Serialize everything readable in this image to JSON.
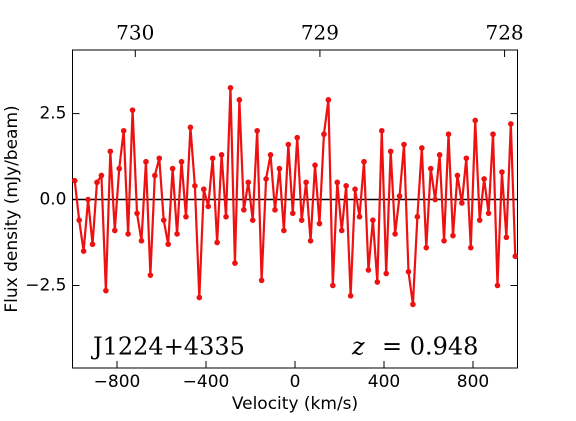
{
  "chart_data": {
    "type": "line",
    "xlabel": "Velocity (km/s)",
    "ylabel": "Flux density (mJy/beam)",
    "source_label": "J1224+4335",
    "redshift_symbol": "z",
    "redshift_text": "= 0.948",
    "xlim": [
      -1000,
      1000
    ],
    "ylim": [
      -4.9,
      4.35
    ],
    "x2lim": [
      730.34,
      727.93
    ],
    "xticks": [
      {
        "value": -800,
        "label": "−800"
      },
      {
        "value": -400,
        "label": "−400"
      },
      0,
      400,
      800
    ],
    "yticks": [
      {
        "value": -2.5,
        "label": "−2.5"
      },
      {
        "value": 0,
        "label": "0.0"
      },
      2.5
    ],
    "x2ticks": [
      730,
      729,
      728
    ],
    "hline": 0,
    "x": [
      -990,
      -970,
      -950,
      -930,
      -910,
      -890,
      -870,
      -850,
      -830,
      -810,
      -790,
      -770,
      -750,
      -730,
      -710,
      -690,
      -670,
      -650,
      -630,
      -610,
      -590,
      -570,
      -550,
      -530,
      -510,
      -490,
      -470,
      -450,
      -430,
      -410,
      -390,
      -370,
      -350,
      -330,
      -310,
      -290,
      -270,
      -250,
      -230,
      -210,
      -190,
      -170,
      -150,
      -130,
      -110,
      -90,
      -70,
      -50,
      -30,
      -10,
      10,
      30,
      50,
      70,
      90,
      110,
      130,
      150,
      170,
      190,
      210,
      230,
      250,
      270,
      290,
      310,
      330,
      350,
      370,
      390,
      410,
      430,
      450,
      470,
      490,
      510,
      530,
      550,
      570,
      590,
      610,
      630,
      650,
      670,
      690,
      710,
      730,
      750,
      770,
      790,
      810,
      830,
      850,
      870,
      890,
      910,
      930,
      950,
      970,
      990
    ],
    "series": [
      {
        "color": "#ee1111",
        "values": [
          0.55,
          -0.6,
          -1.5,
          0.0,
          -1.3,
          0.5,
          0.7,
          -2.65,
          1.4,
          -0.9,
          0.9,
          2.0,
          -1.0,
          2.6,
          -0.4,
          -1.2,
          1.1,
          -2.2,
          0.7,
          1.2,
          -0.6,
          -1.3,
          0.9,
          -1.0,
          1.1,
          -0.5,
          2.1,
          0.4,
          -2.85,
          0.3,
          -0.2,
          1.2,
          -1.25,
          1.3,
          -0.5,
          3.25,
          -1.85,
          2.9,
          -0.3,
          0.5,
          -0.6,
          2.0,
          -2.35,
          0.6,
          1.3,
          -0.3,
          0.9,
          -0.9,
          1.6,
          -0.4,
          1.8,
          -0.6,
          0.5,
          -1.2,
          1.0,
          -0.7,
          1.9,
          2.9,
          -2.5,
          0.5,
          -0.9,
          0.4,
          -2.8,
          0.3,
          -0.5,
          1.1,
          -2.05,
          -0.6,
          -2.4,
          2.0,
          -2.15,
          1.4,
          -1.0,
          0.1,
          1.6,
          -2.1,
          -3.05,
          -0.5,
          1.5,
          -1.4,
          0.9,
          0.0,
          1.3,
          -1.2,
          1.9,
          -1.05,
          0.7,
          -0.1,
          1.2,
          -1.4,
          2.3,
          -0.6,
          0.6,
          -0.4,
          1.9,
          -2.5,
          0.8,
          -1.1,
          2.2,
          -1.65
        ]
      }
    ]
  }
}
